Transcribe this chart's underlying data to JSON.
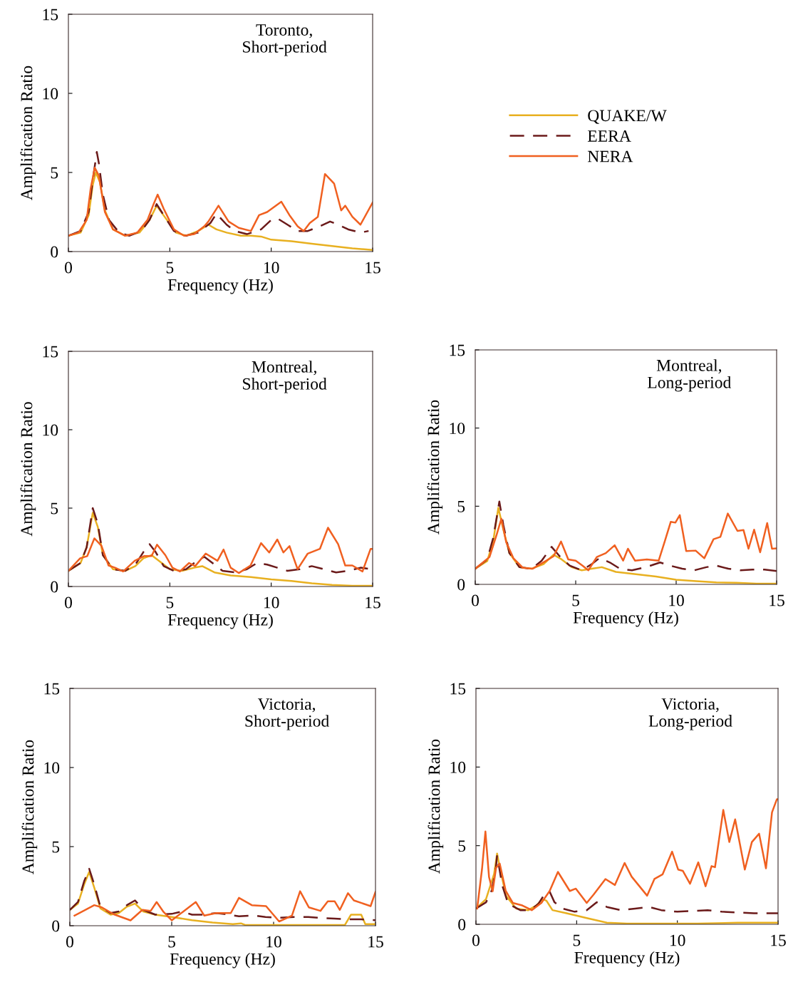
{
  "chart_data": [
    {
      "type": "line",
      "title": "Toronto,\nShort-period",
      "xlabel": "Frequency (Hz)",
      "ylabel": "Amplification Ratio",
      "xlim": [
        0,
        15
      ],
      "ylim": [
        0,
        15
      ],
      "xticks": [
        0,
        5,
        10,
        15
      ],
      "yticks": [
        0,
        5,
        10,
        15
      ],
      "grid": false,
      "legend": "right",
      "series": [
        {
          "name": "QUAKE/W",
          "color": "#e8b020",
          "line_style": "solid",
          "x": [
            0,
            0.6,
            1.0,
            1.2,
            1.35,
            1.55,
            1.8,
            2.2,
            2.8,
            3.5,
            4.0,
            4.35,
            4.8,
            5.3,
            5.8,
            6.4,
            6.9,
            7.3,
            7.8,
            8.5,
            9.0,
            9.5,
            10.0,
            11.0,
            12.0,
            13.0,
            14.0,
            15
          ],
          "values": [
            1.0,
            1.2,
            2.3,
            4.2,
            5.0,
            4.4,
            2.6,
            1.4,
            1.0,
            1.2,
            2.0,
            2.9,
            2.1,
            1.2,
            1.0,
            1.3,
            1.7,
            1.4,
            1.2,
            1.0,
            1.0,
            0.95,
            0.75,
            0.65,
            0.5,
            0.35,
            0.2,
            0.1
          ]
        },
        {
          "name": "EERA",
          "color": "#6b1a1a",
          "line_style": "dashed",
          "x": [
            0,
            0.6,
            1.0,
            1.2,
            1.4,
            1.5,
            1.7,
            2.0,
            2.5,
            3.0,
            3.6,
            4.0,
            4.35,
            4.7,
            5.2,
            5.8,
            6.4,
            7.0,
            7.3,
            7.8,
            8.2,
            8.8,
            9.5,
            10.0,
            10.3,
            10.8,
            11.3,
            11.8,
            12.4,
            12.9,
            13.3,
            13.8,
            14.4,
            14.8
          ],
          "values": [
            1.0,
            1.3,
            2.5,
            4.5,
            6.3,
            5.6,
            3.6,
            2.0,
            1.2,
            1.0,
            1.3,
            2.0,
            3.0,
            2.3,
            1.3,
            1.0,
            1.2,
            1.8,
            2.4,
            1.7,
            1.3,
            1.1,
            1.4,
            2.0,
            2.1,
            1.7,
            1.3,
            1.3,
            1.6,
            1.9,
            1.7,
            1.4,
            1.2,
            1.3
          ]
        },
        {
          "name": "NERA",
          "color": "#f06020",
          "line_style": "solid",
          "x": [
            0,
            0.5,
            0.9,
            1.1,
            1.3,
            1.5,
            1.8,
            2.2,
            2.8,
            3.4,
            3.9,
            4.2,
            4.4,
            4.7,
            5.2,
            5.7,
            6.2,
            6.7,
            6.9,
            7.4,
            7.9,
            8.4,
            9.0,
            9.4,
            9.8,
            10.5,
            10.9,
            11.3,
            11.6,
            11.9,
            12.3,
            12.65,
            13.1,
            13.45,
            13.65,
            14.0,
            14.4,
            15
          ],
          "values": [
            1.0,
            1.2,
            2.0,
            4.0,
            5.3,
            4.8,
            2.5,
            1.4,
            1.0,
            1.2,
            2.0,
            3.0,
            3.6,
            2.7,
            1.4,
            1.0,
            1.1,
            1.6,
            1.9,
            2.9,
            1.9,
            1.5,
            1.3,
            2.3,
            2.5,
            3.15,
            2.3,
            1.6,
            1.3,
            1.8,
            2.2,
            4.9,
            4.3,
            2.6,
            2.9,
            2.2,
            1.7,
            3.1
          ]
        }
      ]
    },
    {
      "type": "line",
      "title": "Montreal,\nShort-period",
      "xlabel": "Frequency (Hz)",
      "ylabel": "Amplification Ratio",
      "xlim": [
        0,
        15
      ],
      "ylim": [
        0,
        15
      ],
      "xticks": [
        0,
        5,
        10,
        15
      ],
      "yticks": [
        0,
        5,
        10,
        15
      ],
      "grid": false,
      "series": [
        {
          "color": "#e8b020",
          "line_style": "solid",
          "x": [
            0,
            0.6,
            0.9,
            1.2,
            1.45,
            1.7,
            2.2,
            2.8,
            3.3,
            3.7,
            4.1,
            4.5,
            5.0,
            5.6,
            6.2,
            6.6,
            7.2,
            8.0,
            9.0,
            10.0,
            11.0,
            12.0,
            13.0,
            14.0,
            15
          ],
          "values": [
            1.0,
            1.5,
            2.5,
            4.7,
            3.8,
            2.0,
            1.1,
            1.0,
            1.3,
            1.8,
            2.0,
            1.6,
            1.1,
            1.0,
            1.2,
            1.3,
            0.9,
            0.7,
            0.6,
            0.45,
            0.35,
            0.2,
            0.1,
            0.05,
            0.05
          ]
        },
        {
          "color": "#6b1a1a",
          "line_style": "dashed",
          "x": [
            0,
            0.6,
            0.9,
            1.2,
            1.45,
            1.7,
            2.2,
            2.8,
            3.3,
            3.7,
            4.0,
            4.3,
            4.7,
            5.2,
            5.8,
            6.3,
            6.7,
            7.2,
            7.6,
            8.2,
            8.8,
            9.3,
            9.8,
            10.3,
            10.8,
            11.4,
            12.0,
            12.6,
            13.2,
            13.8,
            14.4,
            15
          ],
          "values": [
            1.0,
            1.5,
            2.5,
            5.0,
            4.0,
            2.0,
            1.1,
            1.0,
            1.4,
            2.2,
            2.7,
            2.2,
            1.3,
            1.0,
            1.1,
            1.6,
            1.9,
            1.4,
            1.0,
            0.9,
            1.1,
            1.5,
            1.4,
            1.2,
            1.0,
            1.1,
            1.3,
            1.1,
            0.9,
            1.0,
            1.2,
            1.1
          ]
        },
        {
          "color": "#f06020",
          "line_style": "solid",
          "x": [
            0,
            0.58,
            0.93,
            1.28,
            1.63,
            1.98,
            2.3,
            2.7,
            3.27,
            3.73,
            4.1,
            4.37,
            4.78,
            5.13,
            5.5,
            5.95,
            6.25,
            6.77,
            7.35,
            7.65,
            8.0,
            8.4,
            8.98,
            9.5,
            9.9,
            10.3,
            10.6,
            10.9,
            11.3,
            11.8,
            12.4,
            12.8,
            13.3,
            13.65,
            14.0,
            14.5,
            14.9,
            15
          ],
          "values": [
            1.0,
            1.8,
            1.94,
            3.07,
            2.6,
            1.34,
            1.2,
            0.96,
            1.64,
            1.94,
            1.94,
            2.67,
            2.0,
            1.2,
            0.96,
            1.5,
            1.3,
            2.1,
            1.64,
            2.36,
            1.2,
            0.86,
            1.34,
            2.77,
            2.17,
            3.0,
            2.17,
            2.58,
            1.11,
            2.1,
            2.4,
            3.75,
            2.7,
            1.34,
            1.34,
            0.96,
            2.4,
            2.4
          ]
        }
      ]
    },
    {
      "type": "line",
      "title": "Montreal,\nLong-period",
      "xlabel": "Frequency (Hz)",
      "ylabel": "Amplification Ratio",
      "xlim": [
        0,
        15
      ],
      "ylim": [
        0,
        15
      ],
      "xticks": [
        0,
        5,
        10,
        15
      ],
      "yticks": [
        0,
        5,
        10,
        15
      ],
      "grid": false,
      "series": [
        {
          "color": "#e8b020",
          "line_style": "solid",
          "x": [
            0,
            0.6,
            0.9,
            1.15,
            1.4,
            1.7,
            2.2,
            2.8,
            3.4,
            3.9,
            4.3,
            4.8,
            5.3,
            5.8,
            6.3,
            7.0,
            8.0,
            9.0,
            10.0,
            11.0,
            12.0,
            13.0,
            14.0,
            15
          ],
          "values": [
            1.0,
            1.5,
            2.8,
            4.9,
            3.5,
            2.0,
            1.1,
            1.0,
            1.3,
            1.9,
            1.6,
            1.1,
            0.9,
            1.0,
            1.1,
            0.8,
            0.65,
            0.5,
            0.3,
            0.2,
            0.12,
            0.1,
            0.05,
            0.05
          ]
        },
        {
          "color": "#6b1a1a",
          "line_style": "dashed",
          "x": [
            0,
            0.6,
            0.9,
            1.2,
            1.4,
            1.7,
            2.2,
            2.8,
            3.3,
            3.8,
            4.2,
            4.7,
            5.3,
            5.8,
            6.2,
            6.7,
            7.2,
            7.8,
            8.5,
            9.2,
            9.7,
            10.3,
            10.9,
            11.5,
            12.0,
            12.6,
            13.2,
            13.8,
            14.4,
            15
          ],
          "values": [
            1.0,
            1.6,
            3.0,
            5.3,
            3.8,
            2.0,
            1.1,
            1.0,
            1.5,
            2.4,
            1.8,
            1.2,
            0.9,
            1.3,
            1.7,
            1.4,
            1.0,
            0.9,
            1.1,
            1.4,
            1.2,
            1.0,
            0.9,
            1.1,
            1.2,
            1.0,
            0.9,
            0.95,
            0.95,
            0.85
          ]
        },
        {
          "color": "#f06020",
          "line_style": "solid",
          "x": [
            0,
            0.71,
            1.07,
            1.3,
            1.54,
            1.9,
            2.37,
            2.85,
            3.44,
            3.9,
            4.27,
            4.63,
            5.0,
            5.34,
            5.63,
            6.05,
            6.5,
            6.94,
            7.36,
            7.6,
            7.95,
            8.54,
            9.13,
            9.43,
            9.73,
            9.96,
            10.18,
            10.5,
            10.97,
            11.4,
            11.86,
            12.2,
            12.57,
            13.05,
            13.35,
            13.6,
            13.88,
            14.18,
            14.53,
            14.77,
            15
          ],
          "values": [
            1.0,
            1.75,
            3.2,
            4.2,
            2.7,
            1.67,
            1.06,
            1.0,
            1.44,
            1.8,
            2.74,
            1.6,
            1.52,
            1.2,
            0.9,
            1.75,
            2.0,
            2.5,
            1.52,
            2.28,
            1.52,
            1.6,
            1.52,
            2.74,
            4.0,
            3.95,
            4.43,
            2.13,
            2.16,
            1.67,
            2.89,
            3.04,
            4.53,
            3.42,
            3.48,
            2.28,
            3.5,
            2.05,
            3.92,
            2.28,
            2.3
          ]
        }
      ]
    },
    {
      "type": "line",
      "title": "Victoria,\nShort-period",
      "xlabel": "Frequency (Hz)",
      "ylabel": "Amplification Ratio",
      "xlim": [
        0,
        15
      ],
      "ylim": [
        0,
        15
      ],
      "xticks": [
        0,
        5,
        10,
        15
      ],
      "yticks": [
        0,
        5,
        10,
        15
      ],
      "grid": false,
      "series": [
        {
          "color": "#e8b020",
          "line_style": "solid",
          "x": [
            0,
            0.4,
            0.7,
            0.95,
            1.2,
            1.5,
            2.0,
            2.4,
            2.8,
            3.2,
            3.6,
            4.2,
            5.0,
            6.0,
            7.0,
            8.0,
            8.4,
            8.6,
            9.5,
            11.0,
            12.0,
            13.5,
            13.8,
            14.3,
            14.5,
            15
          ],
          "values": [
            1.0,
            1.4,
            2.6,
            3.4,
            2.4,
            1.1,
            0.7,
            0.8,
            1.2,
            1.4,
            0.9,
            0.7,
            0.55,
            0.35,
            0.2,
            0.1,
            0.15,
            0.05,
            0.05,
            0.05,
            0.05,
            0.05,
            0.7,
            0.7,
            0.1,
            0.1
          ]
        },
        {
          "color": "#6b1a1a",
          "line_style": "dashed",
          "x": [
            0,
            0.4,
            0.7,
            0.95,
            1.2,
            1.5,
            2.0,
            2.4,
            2.8,
            3.2,
            3.6,
            4.2,
            5.0,
            5.5,
            6.0,
            6.5,
            7.2,
            7.8,
            8.3,
            9.0,
            9.6,
            10.3,
            11.0,
            11.7,
            12.3,
            13.0,
            13.6,
            14.3,
            15
          ],
          "values": [
            1.0,
            1.5,
            2.8,
            3.6,
            2.6,
            1.2,
            0.8,
            0.9,
            1.3,
            1.6,
            1.0,
            0.7,
            0.75,
            0.9,
            0.7,
            0.7,
            0.8,
            0.7,
            0.6,
            0.65,
            0.55,
            0.5,
            0.55,
            0.55,
            0.5,
            0.45,
            0.4,
            0.4,
            0.35
          ]
        },
        {
          "color": "#f06020",
          "line_style": "solid",
          "x": [
            0.23,
            1.2,
            1.57,
            2.16,
            2.98,
            3.56,
            3.97,
            4.26,
            4.6,
            5.0,
            5.54,
            6.18,
            6.6,
            7.18,
            7.9,
            8.3,
            8.93,
            9.63,
            10.27,
            10.9,
            11.3,
            11.73,
            12.3,
            12.66,
            13.0,
            13.25,
            13.65,
            13.94,
            14.76,
            15
          ],
          "values": [
            0.64,
            1.3,
            1.16,
            0.72,
            0.34,
            1.0,
            0.94,
            1.5,
            0.87,
            0.34,
            0.87,
            1.5,
            0.64,
            0.8,
            0.8,
            1.76,
            1.3,
            1.24,
            0.27,
            0.64,
            2.18,
            1.16,
            0.94,
            1.54,
            1.54,
            1.0,
            2.06,
            1.6,
            1.24,
            2.13
          ]
        }
      ]
    },
    {
      "type": "line",
      "title": "Victoria,\nLong-period",
      "xlabel": "Frequency (Hz)",
      "ylabel": "Amplification Ratio",
      "xlim": [
        0,
        15
      ],
      "ylim": [
        0,
        15
      ],
      "xticks": [
        0,
        5,
        10,
        15
      ],
      "yticks": [
        0,
        5,
        10,
        15
      ],
      "grid": false,
      "series": [
        {
          "color": "#e8b020",
          "line_style": "solid",
          "x": [
            0,
            0.5,
            0.9,
            1.05,
            1.2,
            1.5,
            2.0,
            2.6,
            3.0,
            3.3,
            3.5,
            3.8,
            4.5,
            5.5,
            6.5,
            7.5,
            9.0,
            11.0,
            13.0,
            15
          ],
          "values": [
            1.0,
            1.6,
            3.2,
            4.5,
            3.5,
            1.8,
            1.0,
            0.9,
            1.2,
            1.6,
            1.5,
            0.9,
            0.7,
            0.4,
            0.1,
            0.05,
            0.05,
            0.05,
            0.1,
            0.1
          ]
        },
        {
          "color": "#6b1a1a",
          "line_style": "dashed",
          "x": [
            0,
            0.5,
            0.8,
            1.0,
            1.05,
            1.3,
            1.6,
            2.2,
            2.7,
            3.1,
            3.4,
            3.65,
            3.9,
            4.3,
            4.9,
            5.5,
            6.0,
            6.5,
            7.2,
            7.9,
            8.6,
            9.2,
            10.0,
            10.8,
            11.5,
            12.2,
            13.0,
            13.8,
            14.5,
            15
          ],
          "values": [
            1.0,
            1.4,
            2.2,
            3.7,
            4.4,
            2.5,
            1.3,
            0.9,
            0.9,
            1.3,
            1.9,
            2.1,
            1.4,
            1.0,
            0.8,
            0.9,
            1.4,
            1.1,
            0.9,
            1.0,
            1.1,
            0.9,
            0.8,
            0.85,
            0.9,
            0.8,
            0.75,
            0.7,
            0.7,
            0.7
          ]
        },
        {
          "color": "#f06020",
          "line_style": "solid",
          "x": [
            0.06,
            0.3,
            0.47,
            0.65,
            0.83,
            1.0,
            1.18,
            1.48,
            1.83,
            2.3,
            2.77,
            3.25,
            3.66,
            4.07,
            4.66,
            4.96,
            5.5,
            5.85,
            6.43,
            6.9,
            7.38,
            7.73,
            8.5,
            8.86,
            9.27,
            9.74,
            10.04,
            10.27,
            10.63,
            11.04,
            11.4,
            11.7,
            11.87,
            12.28,
            12.58,
            12.87,
            13.35,
            13.7,
            14.06,
            14.4,
            14.7,
            14.94,
            15
          ],
          "values": [
            1.0,
            3.5,
            5.9,
            3.0,
            2.1,
            3.6,
            3.86,
            2.12,
            1.36,
            1.2,
            0.9,
            1.36,
            2.12,
            3.33,
            2.12,
            2.27,
            1.36,
            1.9,
            2.88,
            2.5,
            3.9,
            3.03,
            1.82,
            2.88,
            3.18,
            4.62,
            3.48,
            3.4,
            2.58,
            3.94,
            2.42,
            3.7,
            3.63,
            7.27,
            5.23,
            6.67,
            3.48,
            5.23,
            5.76,
            3.56,
            7.12,
            7.95,
            7.95
          ]
        }
      ]
    }
  ]
}
